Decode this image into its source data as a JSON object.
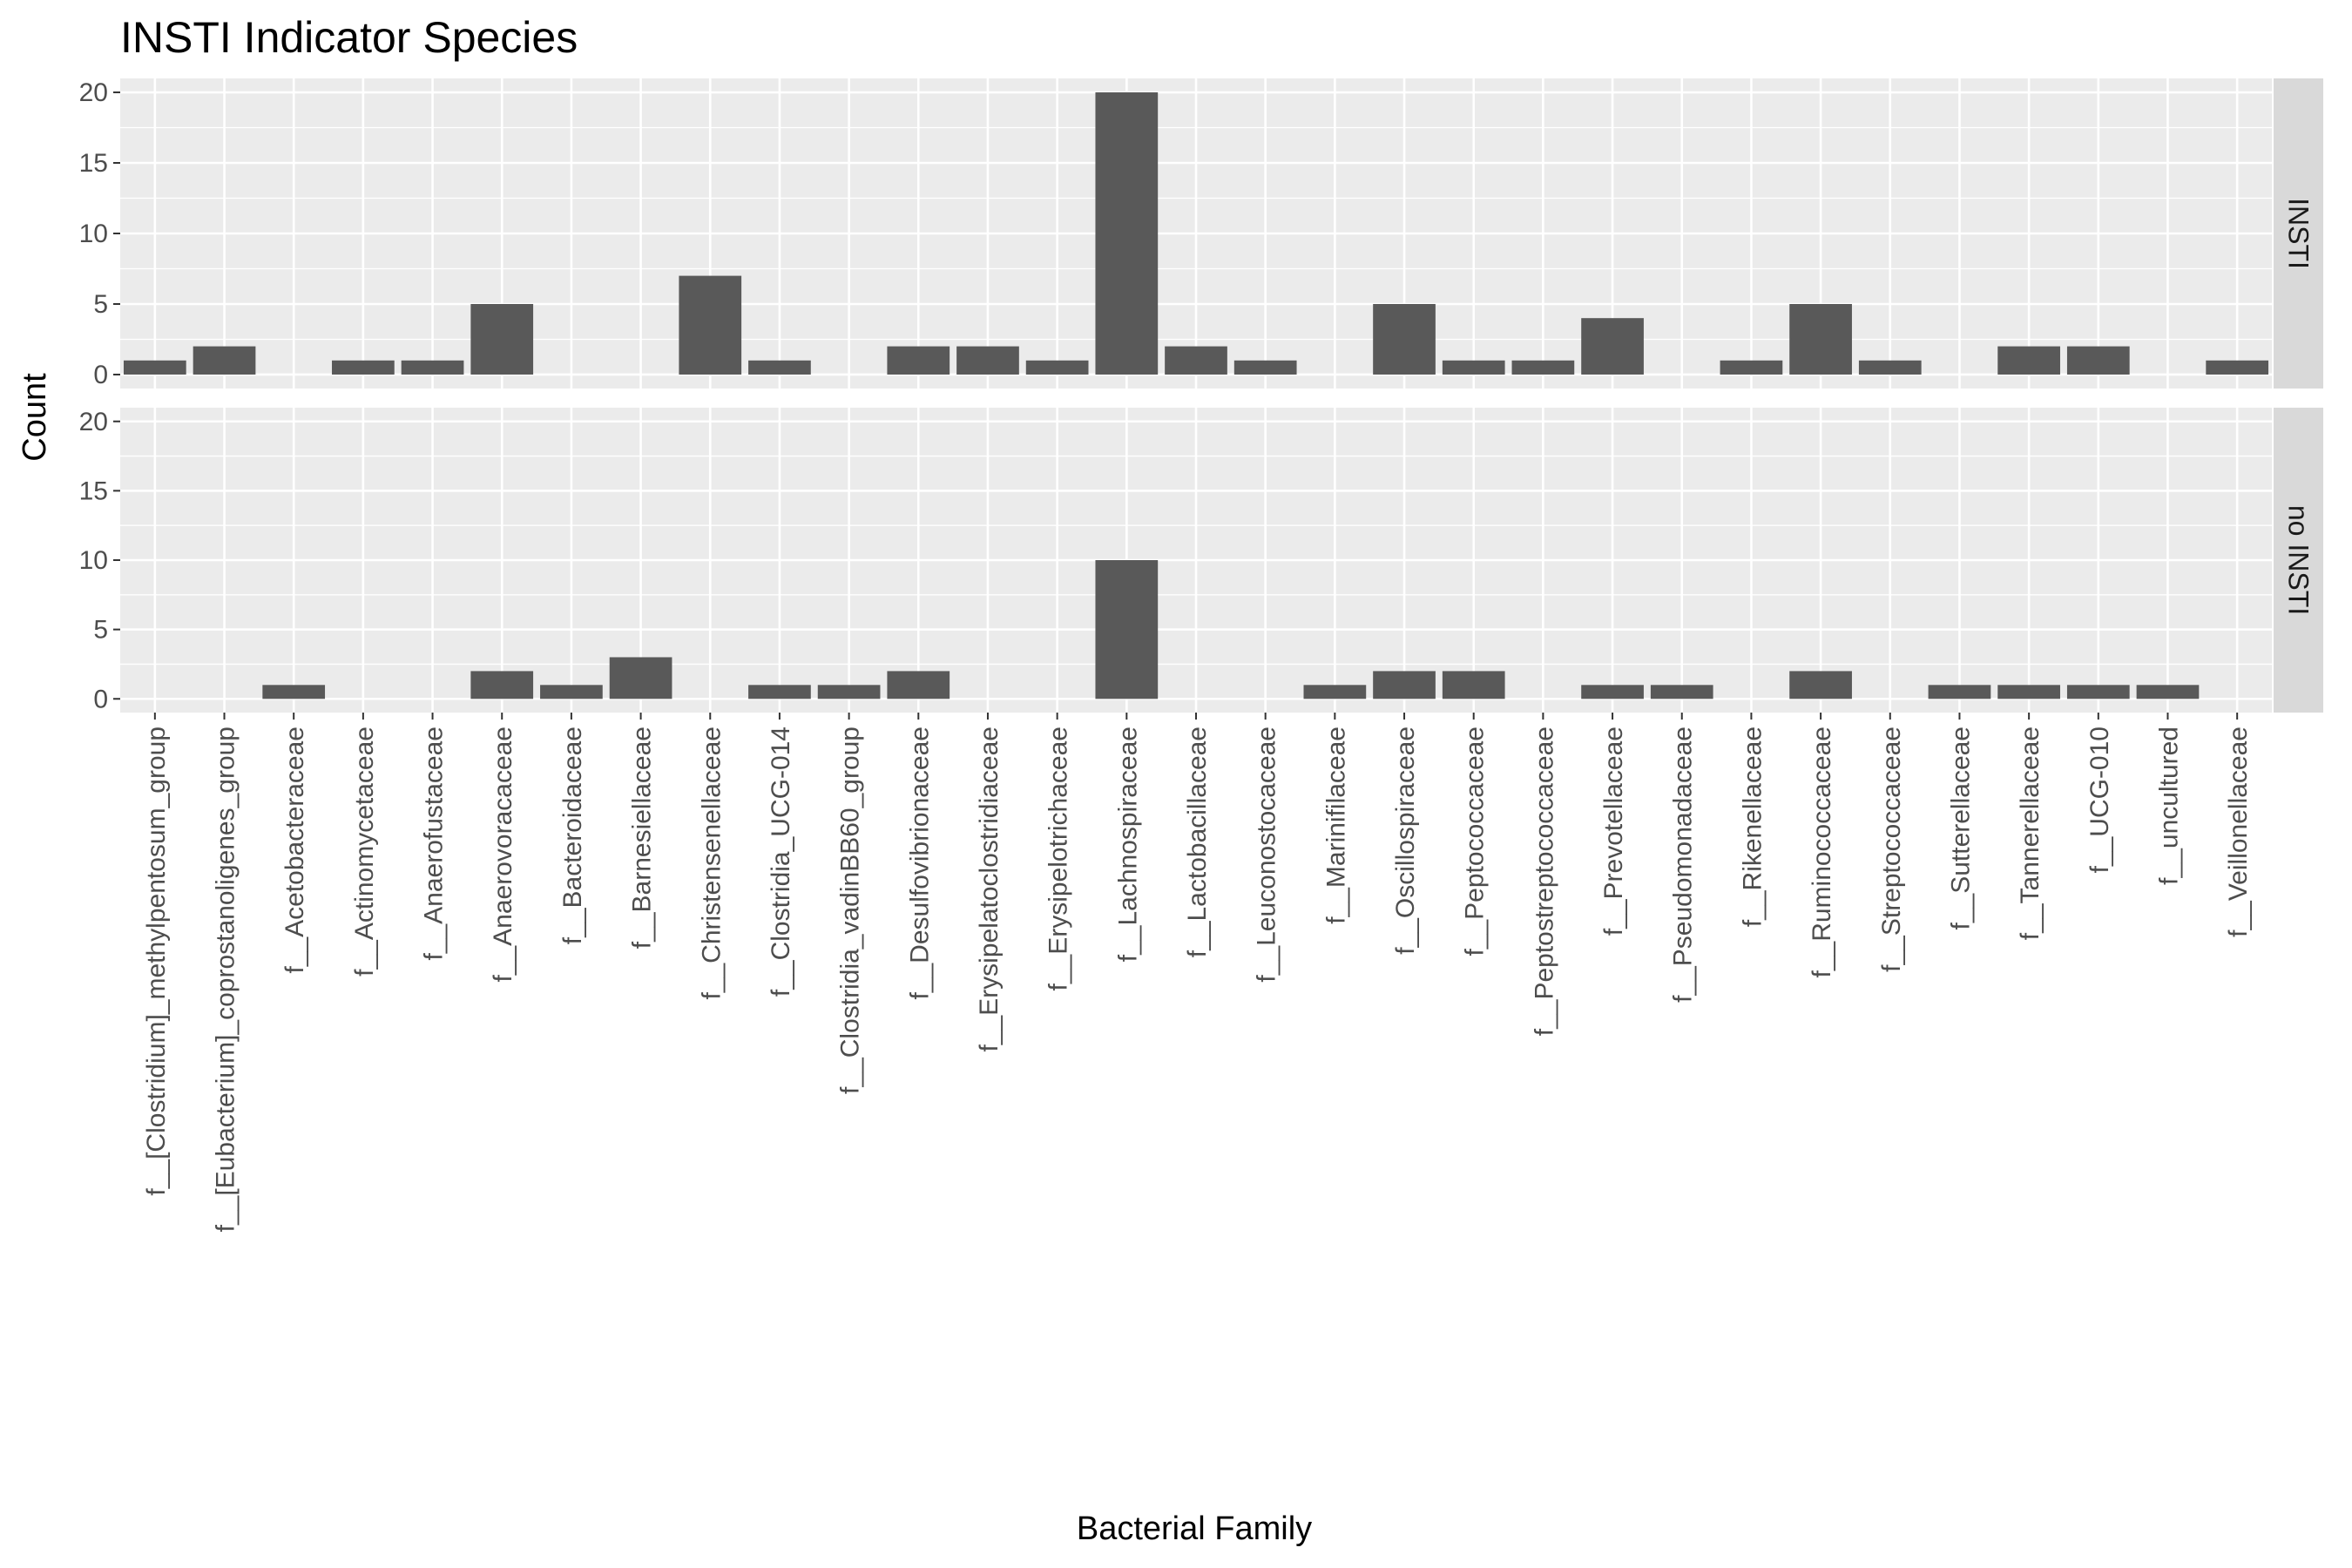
{
  "chart_data": {
    "type": "bar",
    "title": "INSTI Indicator Species",
    "xlabel": "Bacterial Family",
    "ylabel": "Count",
    "ylim": [
      0,
      20
    ],
    "yticks": [
      "0",
      "5",
      "10",
      "15",
      "20"
    ],
    "grid": true,
    "facet": "rows",
    "bar_color": "#595959",
    "panel_bg": "#ebebeb",
    "strip_bg": "#d9d9d9",
    "categories": [
      "f__[Clostridium]_methylpentosum_group",
      "f__[Eubacterium]_coprostanoligenes_group",
      "f__Acetobacteraceae",
      "f__Actinomycetaceae",
      "f__Anaerofustaceae",
      "f__Anaerovoracaceae",
      "f__Bacteroidaceae",
      "f__Barnesiellaceae",
      "f__Christensenellaceae",
      "f__Clostridia_UCG-014",
      "f__Clostridia_vadinBB60_group",
      "f__Desulfovibrionaceae",
      "f__Erysipelatoclostridiaceae",
      "f__Erysipelotrichaceae",
      "f__Lachnospiraceae",
      "f__Lactobacillaceae",
      "f__Leuconostocaceae",
      "f__Marinifilaceae",
      "f__Oscillospiraceae",
      "f__Peptococcaceae",
      "f__Peptostreptococcaceae",
      "f__Prevotellaceae",
      "f__Pseudomonadaceae",
      "f__Rikenellaceae",
      "f__Ruminococcaceae",
      "f__Streptococcaceae",
      "f__Sutterellaceae",
      "f__Tannerellaceae",
      "f__UCG-010",
      "f__uncultured",
      "f__Veillonellaceae"
    ],
    "series": [
      {
        "name": "INSTI",
        "values": [
          1,
          2,
          0,
          1,
          1,
          5,
          0,
          0,
          7,
          1,
          0,
          2,
          2,
          1,
          20,
          2,
          1,
          0,
          5,
          1,
          1,
          4,
          0,
          1,
          5,
          1,
          0,
          2,
          2,
          0,
          1
        ]
      },
      {
        "name": "no INSTI",
        "values": [
          0,
          0,
          1,
          0,
          0,
          2,
          1,
          3,
          0,
          1,
          1,
          2,
          0,
          0,
          10,
          0,
          0,
          1,
          2,
          2,
          0,
          1,
          1,
          0,
          2,
          0,
          1,
          1,
          1,
          1,
          0
        ]
      }
    ]
  }
}
